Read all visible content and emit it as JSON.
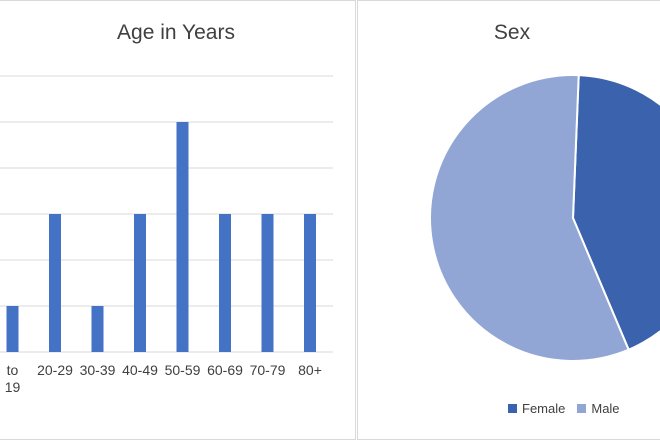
{
  "chart_data": [
    {
      "type": "bar",
      "title": "Age in Years",
      "categories": [
        "to 19",
        "20-29",
        "30-39",
        "40-49",
        "50-59",
        "60-69",
        "70-79",
        "80+"
      ],
      "values": [
        1,
        3,
        1,
        3,
        5,
        3,
        3,
        3
      ],
      "ylim": [
        0,
        5
      ],
      "grid": true,
      "color": "#4472c4"
    },
    {
      "type": "pie",
      "title": "Sex",
      "categories": [
        "Female",
        "Male"
      ],
      "values": [
        43,
        57
      ],
      "colors": [
        "#3b63ad",
        "#92a6d6"
      ],
      "legend_position": "bottom"
    }
  ]
}
